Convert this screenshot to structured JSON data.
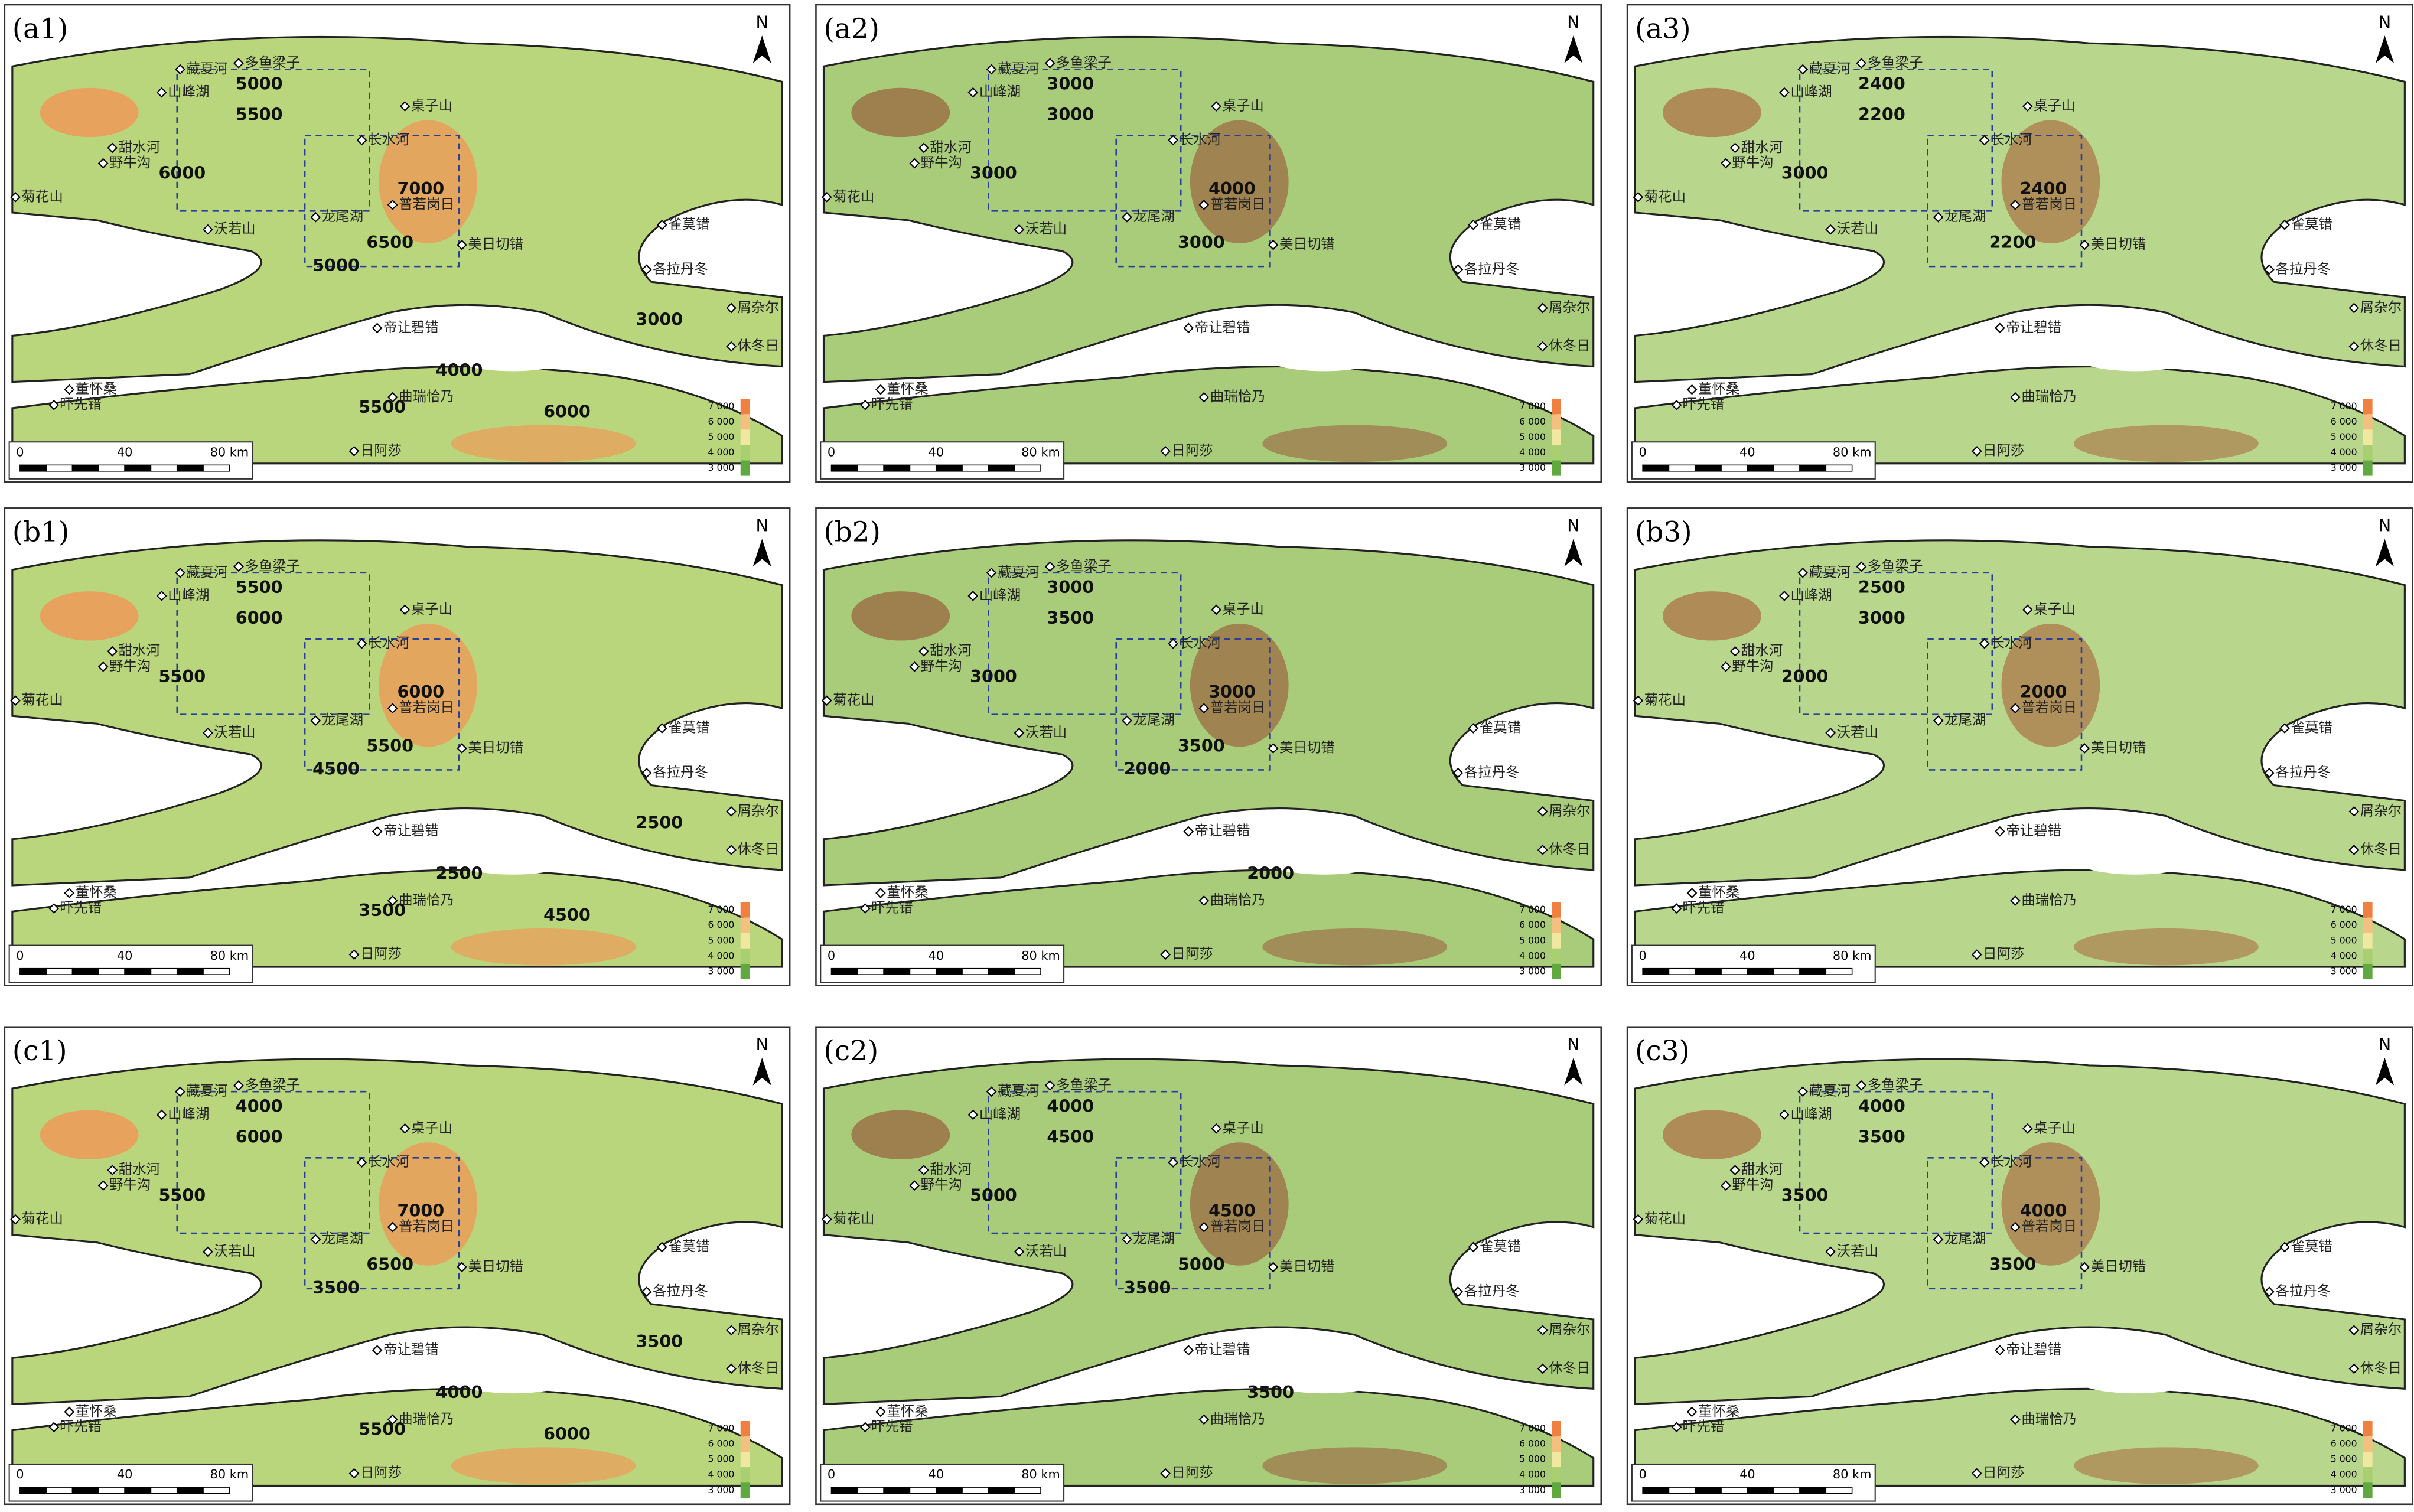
{
  "north": "N",
  "legend": [
    "7 000",
    "6 000",
    "5 000",
    "4 000",
    "3 000"
  ],
  "scale": [
    "0",
    "40",
    "80 km"
  ],
  "places": [
    "藏夏河",
    "多鱼梁子",
    "山峰湖",
    "桌子山",
    "长水河",
    "甜水河",
    "野牛沟",
    "菊花山",
    "沃若山",
    "龙尾湖",
    "普若岗日",
    "美日切错",
    "雀莫错",
    "各拉丹冬",
    "屑杂尔",
    "休冬日",
    "帝让碧错",
    "曲瑞恰乃",
    "日阿莎",
    "董怀桑",
    "吓先错"
  ],
  "panels": [
    {
      "label": "(a1)",
      "contour_labels": [
        "5000",
        "5500",
        "6000",
        "7000",
        "6500",
        "5000",
        "4000",
        "5500",
        "6000",
        "3000"
      ]
    },
    {
      "label": "(a2)",
      "contour_labels": [
        "3000",
        "3000",
        "3000",
        "4000",
        "3000"
      ]
    },
    {
      "label": "(a3)",
      "contour_labels": [
        "2400",
        "2200",
        "3000",
        "2400",
        "2200"
      ]
    },
    {
      "label": "(b1)",
      "contour_labels": [
        "5500",
        "6000",
        "5500",
        "6000",
        "5500",
        "4500",
        "2500",
        "3500",
        "4500",
        "2500"
      ]
    },
    {
      "label": "(b2)",
      "contour_labels": [
        "3000",
        "3500",
        "3000",
        "3000",
        "3500",
        "2000",
        "2000"
      ]
    },
    {
      "label": "(b3)",
      "contour_labels": [
        "2500",
        "3000",
        "2000",
        "2000"
      ]
    },
    {
      "label": "(c1)",
      "contour_labels": [
        "4000",
        "6000",
        "5500",
        "7000",
        "6500",
        "3500",
        "4000",
        "5500",
        "6000",
        "3500"
      ]
    },
    {
      "label": "(c2)",
      "contour_labels": [
        "4000",
        "4500",
        "5000",
        "4500",
        "5000",
        "3500",
        "3500"
      ]
    },
    {
      "label": "(c3)",
      "contour_labels": [
        "4000",
        "3500",
        "3500",
        "4000",
        "3500"
      ]
    }
  ]
}
